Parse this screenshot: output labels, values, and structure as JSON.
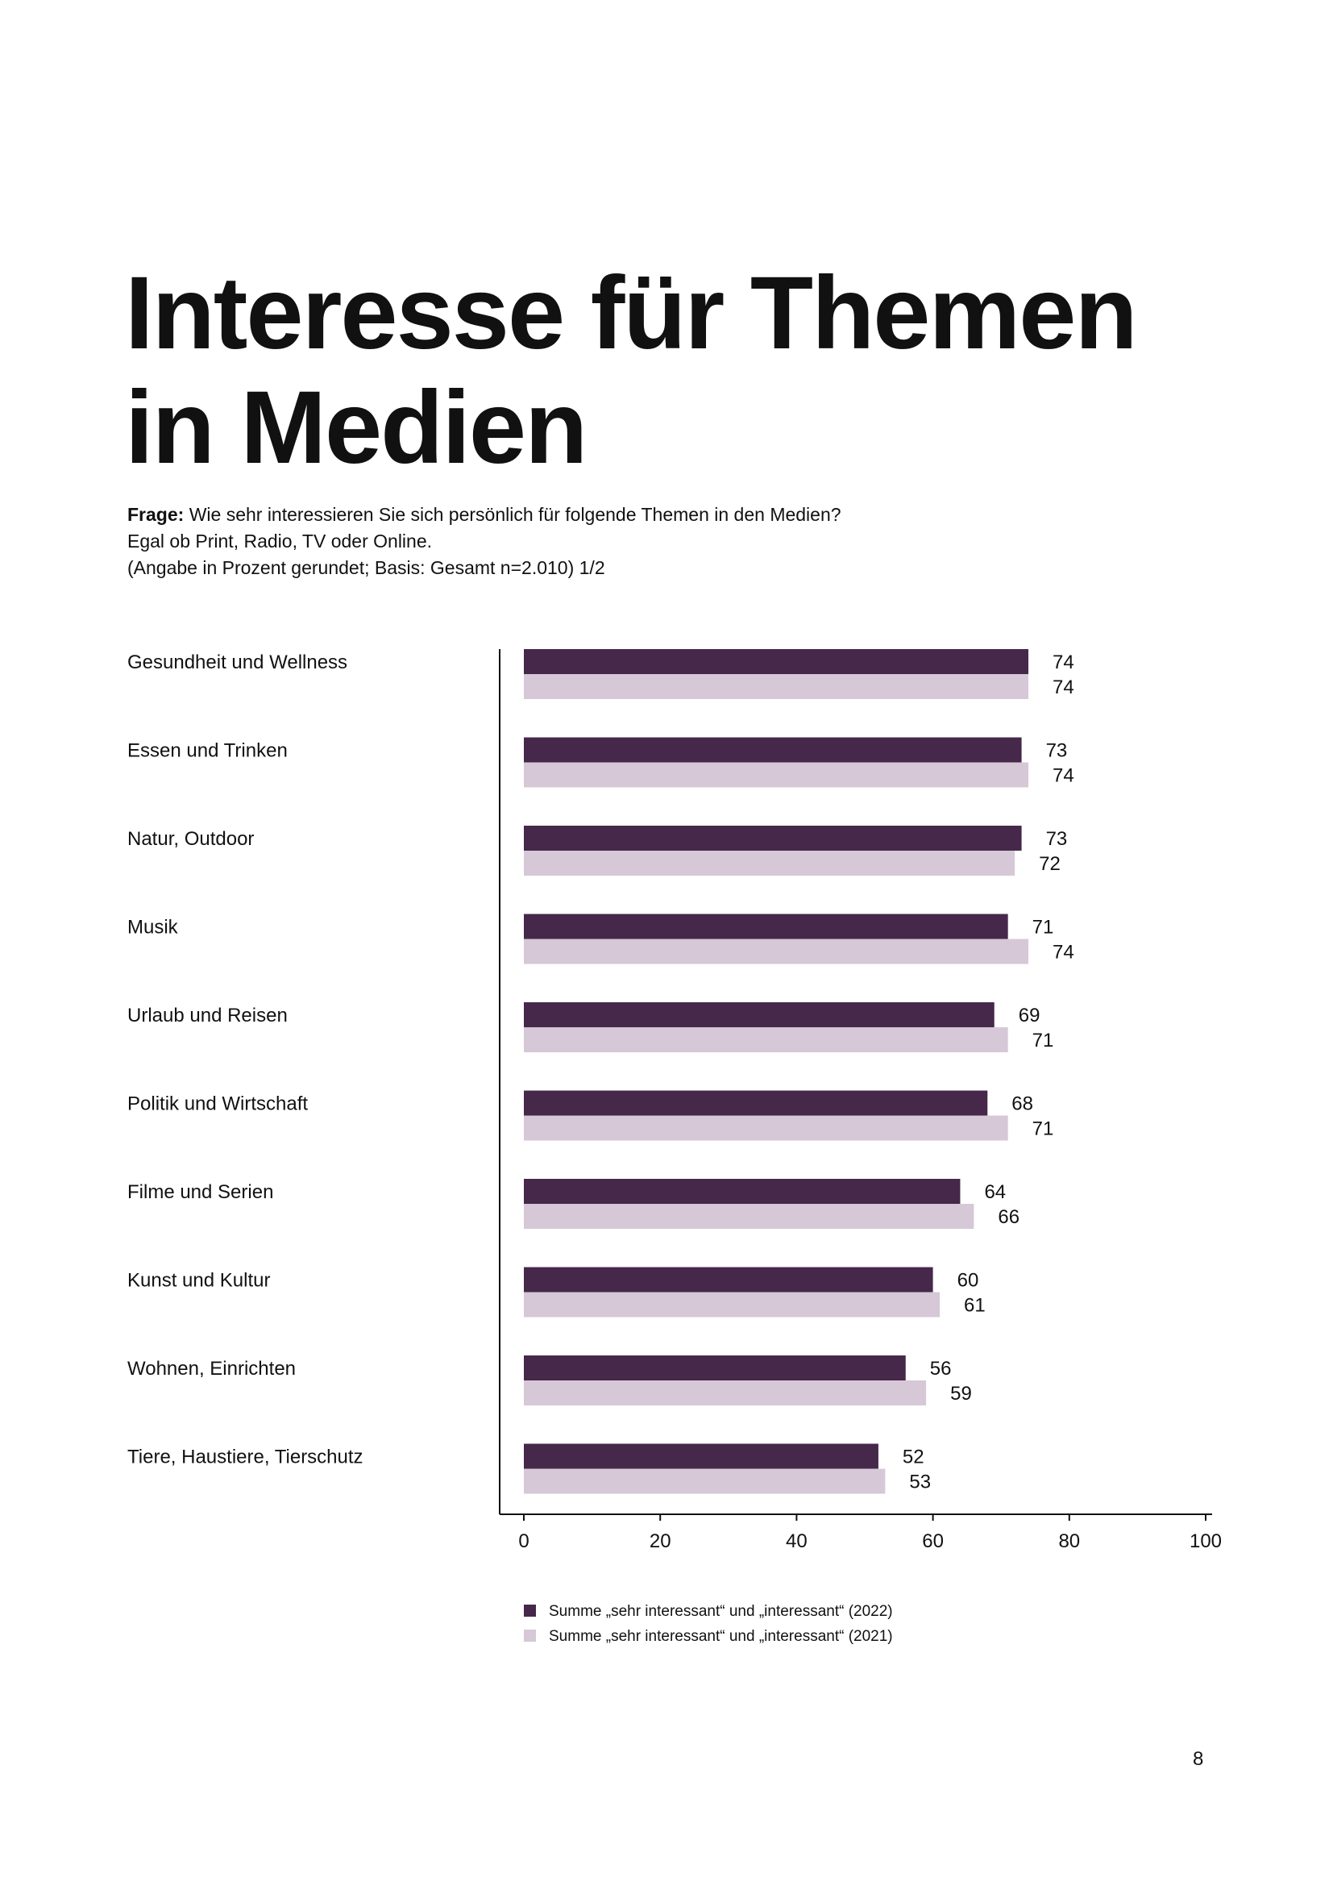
{
  "title": {
    "line1": "Interesse für Themen",
    "line2": "in Medien"
  },
  "question": {
    "label": "Frage:",
    "text": "Wie sehr interessieren Sie sich persönlich für folgende Themen in den Medien?",
    "line2": "Egal ob Print, Radio, TV oder Online.",
    "line3": "(Angabe in Prozent gerundet; Basis: Gesamt n=2.010) 1/2"
  },
  "chart_data": {
    "type": "bar",
    "orientation": "horizontal",
    "categories": [
      "Gesundheit und Wellness",
      "Essen und Trinken",
      "Natur, Outdoor",
      "Musik",
      "Urlaub und Reisen",
      "Politik und Wirtschaft",
      "Filme und Serien",
      "Kunst und Kultur",
      "Wohnen, Einrichten",
      "Tiere, Haustiere, Tierschutz"
    ],
    "series": [
      {
        "name": "Summe „sehr interessant“ und „interessant“ (2022)",
        "color": "#46284a",
        "values": [
          74,
          73,
          73,
          71,
          69,
          68,
          64,
          60,
          56,
          52
        ]
      },
      {
        "name": "Summe „sehr interessant“ und „interessant“ (2021)",
        "color": "#d6c8d6",
        "values": [
          74,
          74,
          72,
          74,
          71,
          71,
          66,
          61,
          59,
          53
        ]
      }
    ],
    "xlim": [
      0,
      100
    ],
    "xticks": [
      0,
      20,
      40,
      60,
      80,
      100
    ],
    "legend_position": "bottom"
  },
  "page_number": "8"
}
